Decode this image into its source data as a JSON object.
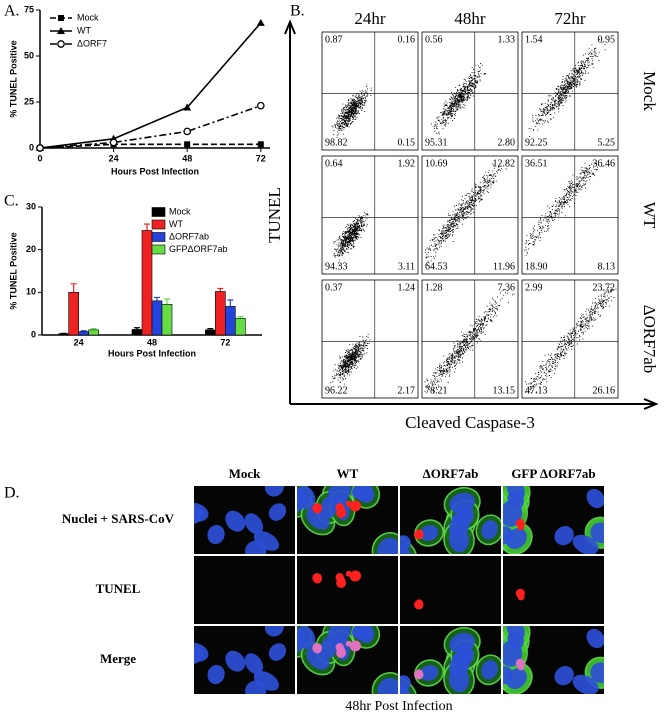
{
  "chart_data": [
    {
      "type": "line",
      "panel_label": "A.",
      "y_label": "% TUNEL Positive",
      "x_label": "Hours Post Infection",
      "x": [
        0,
        24,
        48,
        72
      ],
      "xlim": [
        0,
        75
      ],
      "xticks": [
        0,
        24,
        48,
        72
      ],
      "ylim": [
        0,
        75
      ],
      "yticks": [
        0,
        25,
        50,
        75
      ],
      "legend": "top-left",
      "grid": false,
      "series": [
        {
          "name": "Mock",
          "color": "#000000",
          "marker": "square",
          "dash": "dashed",
          "values": [
            0,
            2,
            2,
            2
          ]
        },
        {
          "name": "WT",
          "color": "#000000",
          "marker": "triangle",
          "dash": "solid",
          "values": [
            0,
            5,
            22,
            68
          ]
        },
        {
          "name": "ΔORF7",
          "color": "#000000",
          "marker": "circle",
          "dash": "dashdot",
          "values": [
            0,
            3,
            9,
            23
          ]
        }
      ]
    },
    {
      "type": "bar",
      "panel_label": "C.",
      "y_label": "% TUNEL Positive",
      "x_label": "Hours Post Infection",
      "categories": [
        "24",
        "48",
        "72"
      ],
      "ylim": [
        0,
        30
      ],
      "yticks": [
        0,
        10,
        20,
        30
      ],
      "legend": "top-right",
      "grid": false,
      "series": [
        {
          "name": "Mock",
          "color": "#000000",
          "values": [
            0.3,
            1.3,
            1.2
          ],
          "errors": [
            0.1,
            0.4,
            0.3
          ]
        },
        {
          "name": "WT",
          "color": "#ee2222",
          "values": [
            10,
            24.5,
            10.2
          ],
          "errors": [
            2,
            1.5,
            0.7
          ]
        },
        {
          "name": "ΔORF7ab",
          "color": "#2244dd",
          "values": [
            0.8,
            8,
            6.7
          ],
          "errors": [
            0.2,
            0.8,
            1.5
          ]
        },
        {
          "name": "GFPΔORF7ab",
          "color": "#66dd44",
          "values": [
            1.2,
            7.2,
            3.9
          ],
          "errors": [
            0.3,
            1.2,
            0.4
          ]
        }
      ]
    }
  ],
  "flow": {
    "panel_label": "B.",
    "y_label": "TUNEL",
    "x_label": "Cleaved Caspase-3",
    "columns": [
      "24hr",
      "48hr",
      "72hr"
    ],
    "rows": [
      "Mock",
      "WT",
      "ΔORF7ab"
    ],
    "plots": [
      [
        {
          "ul": "0.87",
          "ur": "0.16",
          "ll": "98.82",
          "lr": "0.15"
        },
        {
          "ul": "0.56",
          "ur": "1.33",
          "ll": "95.31",
          "lr": "2.80"
        },
        {
          "ul": "1.54",
          "ur": "0.95",
          "ll": "92.25",
          "lr": "5.25"
        }
      ],
      [
        {
          "ul": "0.64",
          "ur": "1.92",
          "ll": "94.33",
          "lr": "3.11"
        },
        {
          "ul": "10.69",
          "ur": "12.82",
          "ll": "64.53",
          "lr": "11.96"
        },
        {
          "ul": "36.51",
          "ur": "36.46",
          "ll": "18.90",
          "lr": "8.13"
        }
      ],
      [
        {
          "ul": "0.37",
          "ur": "1.24",
          "ll": "96.22",
          "lr": "2.17"
        },
        {
          "ul": "1.28",
          "ur": "7.36",
          "ll": "78.21",
          "lr": "13.15"
        },
        {
          "ul": "2.99",
          "ur": "23.72",
          "ll": "47.13",
          "lr": "26.16"
        }
      ]
    ]
  },
  "microscopy": {
    "panel_label": "D.",
    "columns": [
      "Mock",
      "WT",
      "ΔORF7ab",
      "GFP ΔORF7ab"
    ],
    "rows": [
      "Nuclei + SARS-CoV",
      "TUNEL",
      "Merge"
    ],
    "caption": "48hr Post Infection"
  }
}
